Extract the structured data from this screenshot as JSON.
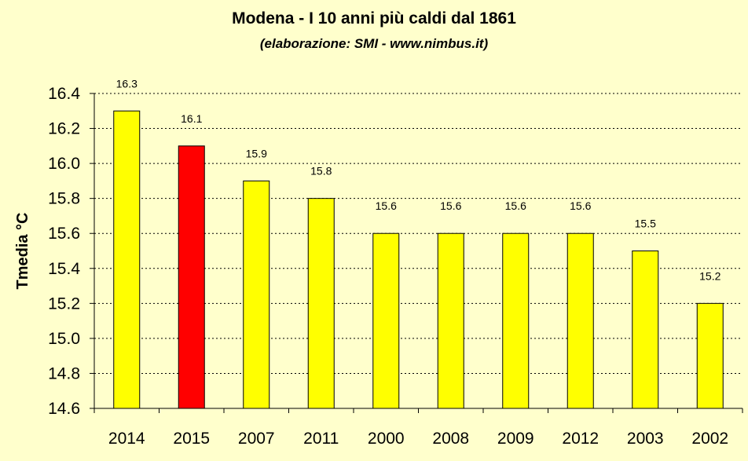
{
  "colors": {
    "background": "#FFFFCC",
    "bar_default": "#FFFF00",
    "bar_highlight": "#FF0000",
    "bar_outline": "#000000",
    "gridline": "#000000"
  },
  "chart_data": {
    "type": "bar",
    "title": "Modena - I 10 anni più caldi dal 1861",
    "subtitle": "(elaborazione: SMI - www.nimbus.it)",
    "xlabel": "",
    "ylabel": "Tmedia °C",
    "ylim": [
      14.6,
      16.4
    ],
    "y_ticks": [
      "14.6",
      "14.8",
      "15.0",
      "15.2",
      "15.4",
      "15.6",
      "15.8",
      "16.0",
      "16.2",
      "16.4"
    ],
    "categories": [
      "2014",
      "2015",
      "2007",
      "2011",
      "2000",
      "2008",
      "2009",
      "2012",
      "2003",
      "2002"
    ],
    "values": [
      16.3,
      16.1,
      15.9,
      15.8,
      15.6,
      15.6,
      15.6,
      15.6,
      15.5,
      15.2
    ],
    "data_labels": [
      "16.3",
      "16.1",
      "15.9",
      "15.8",
      "15.6",
      "15.6",
      "15.6",
      "15.6",
      "15.5",
      "15.2"
    ],
    "highlight_category": "2015",
    "grid": "horizontal dotted",
    "legend": "none"
  }
}
